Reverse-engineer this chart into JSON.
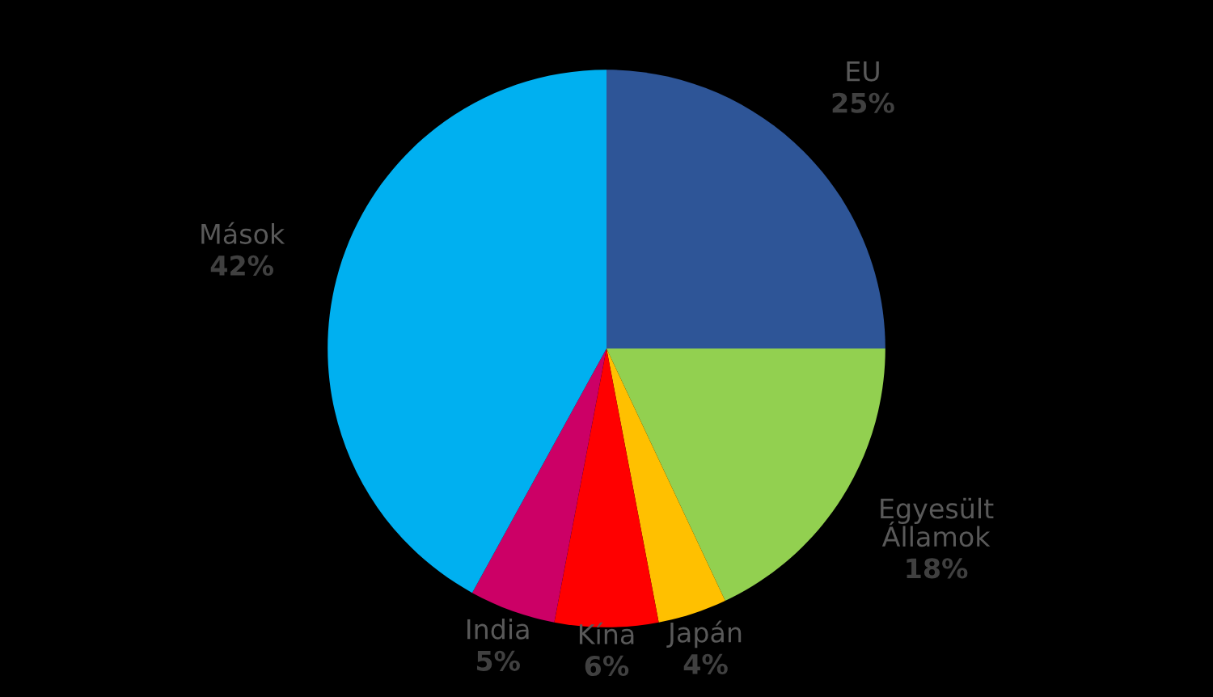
{
  "chart_data": {
    "type": "pie",
    "categories": [
      "EU",
      "Egyesült\nÁllamok",
      "Japán",
      "Kína",
      "India",
      "Mások"
    ],
    "values": [
      25,
      18,
      4,
      6,
      5,
      42
    ],
    "value_labels": [
      "25%",
      "18%",
      "4%",
      "6%",
      "5%",
      "42%"
    ],
    "colors": [
      "#2e5597",
      "#92d050",
      "#ffc000",
      "#ff0000",
      "#cc0066",
      "#00b0f0"
    ],
    "legend": false
  }
}
